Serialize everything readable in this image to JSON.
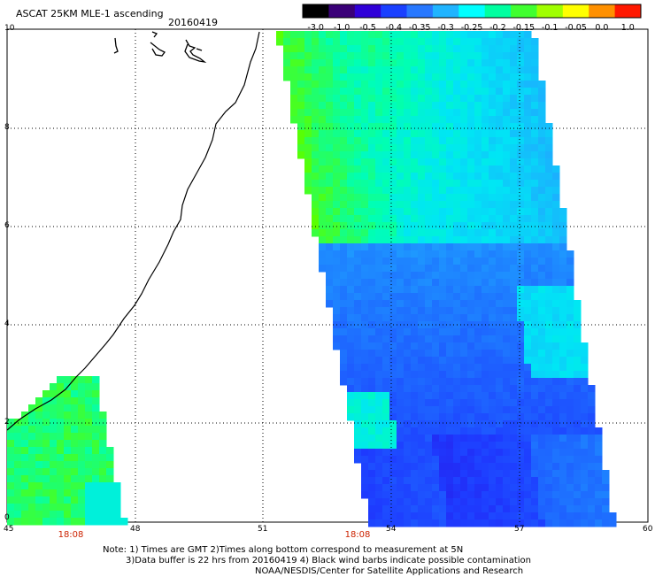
{
  "title": "ASCAT 25KM MLE-1 ascending",
  "date": "20160419",
  "colorbar": {
    "labels": [
      "-3.0",
      "-1.0",
      "-0.5",
      "-0.4",
      "-0.35",
      "-0.3",
      "-0.25",
      "-0.2",
      "-0.15",
      "-0.1",
      "-0.05",
      "0.0",
      "1.0"
    ],
    "colors": [
      "#000000",
      "#3a0078",
      "#3000d8",
      "#1a40ff",
      "#2878ff",
      "#20b4ff",
      "#00ffff",
      "#00ffa0",
      "#40ff30",
      "#a0ff00",
      "#ffff00",
      "#ff9000",
      "#ff1800"
    ]
  },
  "axes": {
    "x_ticks": [
      "45",
      "48",
      "51",
      "54",
      "57",
      "60"
    ],
    "y_ticks": [
      "0",
      "2",
      "4",
      "6",
      "8",
      "10"
    ]
  },
  "times": [
    "18:08",
    "18:08"
  ],
  "notes": {
    "line1": "Note: 1) Times are GMT 2)Times along bottom correspond to measurement at 5N",
    "line2": "3)Data buffer is 22 hrs from 20160419 4) Black wind barbs indicate possible contamination",
    "line3": "NOAA/NESDIS/Center for Satellite Applications and Research"
  }
}
